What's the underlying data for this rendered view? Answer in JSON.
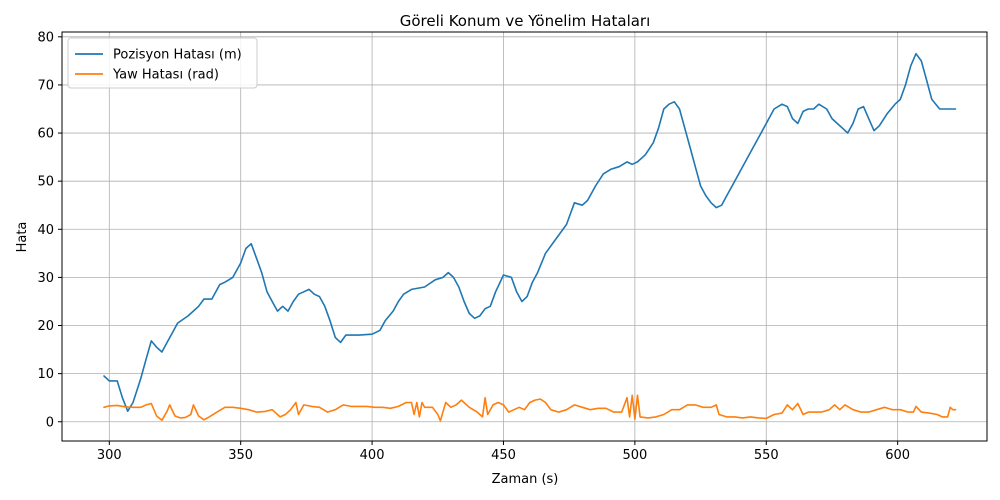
{
  "chart_data": {
    "type": "line",
    "title": "Göreli Konum ve Yönelim Hataları",
    "xlabel": "Zaman (s)",
    "ylabel": "Hata",
    "xlim": [
      282,
      634
    ],
    "ylim": [
      -4,
      81
    ],
    "xticks": [
      300,
      350,
      400,
      450,
      500,
      550,
      600
    ],
    "yticks": [
      0,
      10,
      20,
      30,
      40,
      50,
      60,
      70,
      80
    ],
    "grid": true,
    "legend_position": "top-left",
    "series": [
      {
        "name": "Pozisyon Hatası (m)",
        "color": "#1f77b4",
        "x": [
          298,
          300,
          303,
          305,
          307,
          309,
          312,
          314,
          316,
          318,
          320,
          322,
          324,
          326,
          330,
          334,
          336,
          339,
          342,
          344,
          347,
          350,
          352,
          354,
          356,
          358,
          360,
          362,
          364,
          366,
          368,
          370,
          372,
          374,
          376,
          378,
          380,
          382,
          384,
          386,
          388,
          390,
          392,
          395,
          400,
          403,
          405,
          408,
          410,
          412,
          415,
          420,
          424,
          427,
          429,
          431,
          433,
          435,
          437,
          439,
          441,
          443,
          445,
          447,
          450,
          453,
          455,
          457,
          459,
          461,
          463,
          466,
          470,
          474,
          477,
          480,
          482,
          485,
          488,
          491,
          494,
          497,
          499,
          501,
          504,
          507,
          509,
          511,
          513,
          515,
          517,
          519,
          521,
          523,
          525,
          527,
          529,
          531,
          533,
          535,
          538,
          541,
          544,
          547,
          550,
          553,
          556,
          558,
          560,
          562,
          564,
          566,
          568,
          570,
          573,
          575,
          577,
          579,
          581,
          583,
          585,
          587,
          589,
          591,
          593,
          596,
          599,
          601,
          603,
          605,
          607,
          609,
          611,
          613,
          616,
          619,
          622
        ],
        "y": [
          9.5,
          8.5,
          8.5,
          5,
          2.2,
          4,
          9,
          13,
          16.8,
          15.5,
          14.5,
          16.5,
          18.5,
          20.5,
          22,
          24,
          25.5,
          25.5,
          28.5,
          29,
          30,
          33,
          36,
          37,
          34,
          31,
          27,
          25,
          23,
          24,
          23,
          25,
          26.5,
          27,
          27.5,
          26.5,
          26,
          24,
          21,
          17.5,
          16.5,
          18,
          18,
          18,
          18.2,
          19,
          21,
          23,
          25,
          26.5,
          27.5,
          28,
          29.5,
          30,
          31,
          30,
          28,
          25,
          22.5,
          21.5,
          22,
          23.5,
          24,
          27,
          30.5,
          30,
          27,
          25,
          26,
          29,
          31,
          35,
          38,
          41,
          45.5,
          45,
          46,
          49,
          51.5,
          52.5,
          53,
          54,
          53.5,
          54,
          55.5,
          58,
          61,
          65,
          66,
          66.5,
          65,
          61,
          57,
          53,
          49,
          47,
          45.5,
          44.5,
          45,
          47,
          50,
          53,
          56,
          59,
          62,
          65,
          66,
          65.5,
          63,
          62,
          64.5,
          65,
          65,
          66,
          65,
          63,
          62,
          61,
          60,
          62,
          65,
          65.5,
          63,
          60.5,
          61.5,
          64,
          66,
          67,
          70,
          74,
          76.5,
          75,
          71,
          67,
          65,
          65,
          65
        ]
      },
      {
        "name": "Yaw Hatası (rad)",
        "color": "#ff7f0e",
        "x": [
          298,
          300,
          303,
          306,
          309,
          312,
          314,
          316,
          318,
          320,
          322,
          323,
          325,
          327,
          329,
          331,
          332,
          334,
          336,
          338,
          341,
          344,
          347,
          350,
          353,
          356,
          359,
          362,
          365,
          367,
          369,
          371,
          372,
          374,
          377,
          380,
          383,
          386,
          389,
          392,
          395,
          398,
          401,
          404,
          407,
          410,
          413,
          415,
          416,
          417,
          418,
          419,
          420,
          423,
          425,
          426,
          428,
          430,
          432,
          434,
          437,
          440,
          442,
          443,
          444,
          446,
          448,
          450,
          452,
          454,
          456,
          458,
          460,
          462,
          464,
          466,
          468,
          471,
          474,
          477,
          480,
          483,
          486,
          489,
          492,
          495,
          497,
          498,
          499,
          500,
          501,
          502,
          505,
          508,
          511,
          514,
          517,
          520,
          523,
          526,
          529,
          531,
          532,
          535,
          538,
          541,
          544,
          547,
          550,
          553,
          556,
          558,
          560,
          562,
          564,
          566,
          568,
          571,
          574,
          576,
          578,
          580,
          583,
          586,
          589,
          592,
          595,
          598,
          601,
          604,
          606,
          607,
          609,
          612,
          615,
          617,
          619,
          620,
          621,
          622
        ],
        "y": [
          3,
          3.3,
          3.4,
          3.1,
          3.0,
          3.0,
          3.5,
          3.8,
          1.2,
          0.3,
          2.2,
          3.5,
          1.2,
          0.8,
          0.9,
          1.5,
          3.5,
          1.2,
          0.4,
          1.0,
          2.0,
          3.0,
          3.0,
          2.8,
          2.5,
          2.0,
          2.1,
          2.5,
          1.0,
          1.5,
          2.5,
          4.0,
          1.5,
          3.5,
          3.2,
          3.0,
          2.0,
          2.5,
          3.5,
          3.2,
          3.2,
          3.2,
          3.0,
          3.0,
          2.8,
          3.2,
          4.0,
          4.0,
          1.5,
          4.0,
          1.0,
          4.0,
          3.0,
          3.0,
          1.5,
          0.2,
          4.0,
          3.0,
          3.5,
          4.5,
          3.0,
          2.0,
          1.0,
          5.0,
          1.5,
          3.5,
          4.0,
          3.5,
          2.0,
          2.5,
          3.0,
          2.5,
          4.0,
          4.5,
          4.7,
          4.0,
          2.5,
          2.0,
          2.5,
          3.5,
          3.0,
          2.5,
          2.8,
          2.8,
          2.0,
          2.0,
          5.0,
          1.0,
          5.5,
          0.5,
          5.5,
          1.0,
          0.8,
          1.0,
          1.5,
          2.5,
          2.5,
          3.5,
          3.5,
          3.0,
          3.0,
          3.5,
          1.5,
          1.0,
          1.0,
          0.8,
          1.0,
          0.8,
          0.7,
          1.5,
          1.8,
          3.5,
          2.5,
          3.8,
          1.5,
          2.0,
          2.0,
          2.0,
          2.5,
          3.5,
          2.5,
          3.5,
          2.5,
          2.0,
          2.0,
          2.5,
          3.0,
          2.5,
          2.5,
          2.0,
          2.0,
          3.2,
          2.0,
          1.8,
          1.5,
          1.0,
          1.0,
          3.0,
          2.5,
          2.5
        ]
      }
    ]
  }
}
